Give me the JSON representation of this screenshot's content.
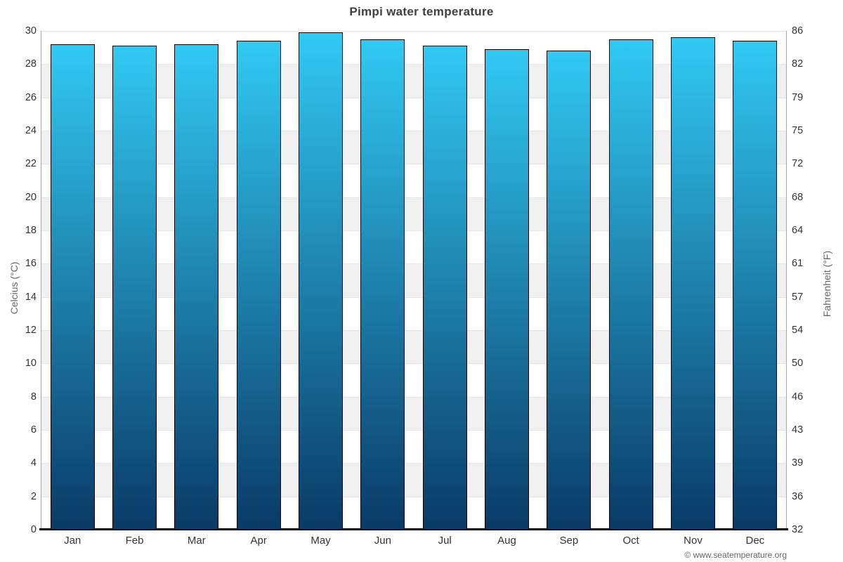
{
  "chart_data": {
    "type": "bar",
    "title": "Pimpi water temperature",
    "categories": [
      "Jan",
      "Feb",
      "Mar",
      "Apr",
      "May",
      "Jun",
      "Jul",
      "Aug",
      "Sep",
      "Oct",
      "Nov",
      "Dec"
    ],
    "values": [
      29.2,
      29.1,
      29.2,
      29.4,
      29.9,
      29.5,
      29.1,
      28.9,
      28.8,
      29.5,
      29.6,
      29.4
    ],
    "unit": "°C",
    "ylabel_left": "Celcius (°C)",
    "ylabel_right": "Fahrenheit (°F)",
    "ylim": [
      0,
      30
    ],
    "celsius_ticks": [
      0,
      2,
      4,
      6,
      8,
      10,
      12,
      14,
      16,
      18,
      20,
      22,
      24,
      26,
      28,
      30
    ],
    "fahrenheit_tick_labels": [
      "32",
      "36",
      "39",
      "43",
      "46",
      "50",
      "54",
      "57",
      "61",
      "64",
      "68",
      "72",
      "75",
      "79",
      "82",
      "86"
    ],
    "legend": "none",
    "grid": "horizontal gridlines every 2°C with alternating white/gray bands",
    "footer": "© www.seatemperature.org",
    "colors": {
      "bar_gradient_top": "#31c9f3",
      "bar_gradient_bottom": "#0a3a66",
      "bar_border": "#000000",
      "band_gray": "#f0f0f0",
      "gridline": "#e4e4e4",
      "axis_line": "#a8a8a8",
      "baseline": "#000000",
      "title_text": "#3f3f3f",
      "tick_text": "#333333",
      "axis_title_text": "#666666",
      "footer_text": "#666666"
    }
  }
}
